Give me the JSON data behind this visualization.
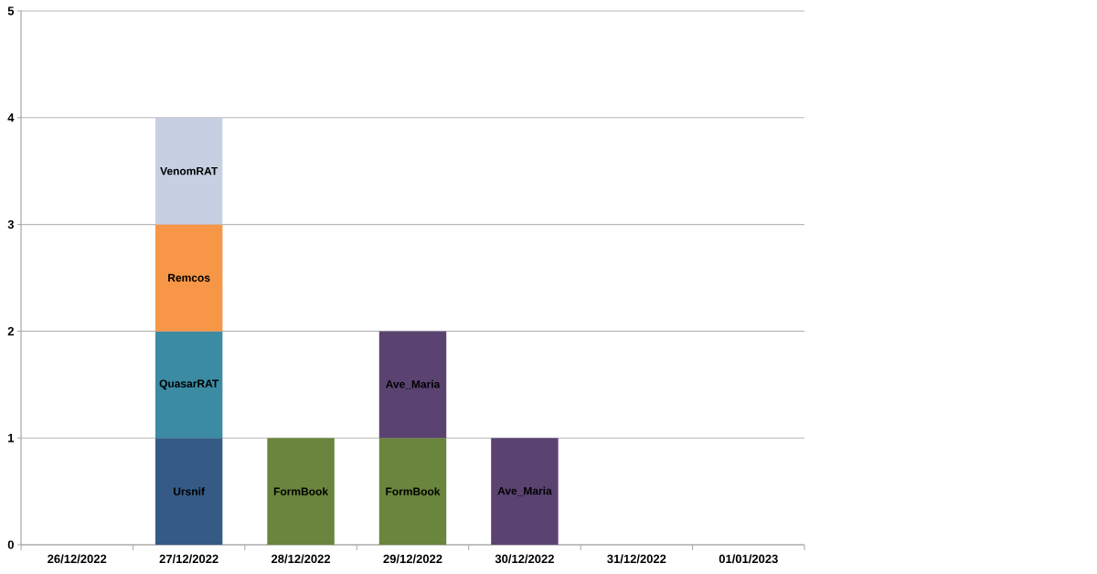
{
  "chart_data": {
    "type": "bar",
    "stacked": true,
    "categories": [
      "26/12/2022",
      "27/12/2022",
      "28/12/2022",
      "29/12/2022",
      "30/12/2022",
      "31/12/2022",
      "01/01/2023"
    ],
    "series": [
      {
        "name": "Ursnif",
        "color": "#355a86",
        "values": [
          null,
          1,
          null,
          null,
          null,
          null,
          null
        ]
      },
      {
        "name": "QuasarRAT",
        "color": "#3b8ba3",
        "values": [
          null,
          1,
          null,
          null,
          null,
          null,
          null
        ]
      },
      {
        "name": "Remcos",
        "color": "#f79646",
        "values": [
          null,
          1,
          null,
          null,
          null,
          null,
          null
        ]
      },
      {
        "name": "VenomRAT",
        "color": "#c6d0e2",
        "values": [
          null,
          1,
          null,
          null,
          null,
          null,
          null
        ]
      },
      {
        "name": "FormBook",
        "color": "#6a853d",
        "values": [
          null,
          null,
          1,
          1,
          null,
          null,
          null
        ]
      },
      {
        "name": "Ave_Maria",
        "color": "#5b4371",
        "values": [
          null,
          null,
          null,
          1,
          1,
          null,
          null
        ]
      }
    ],
    "ylim": [
      0,
      5
    ],
    "yticks": [
      0,
      1,
      2,
      3,
      4,
      5
    ],
    "grid": "y"
  }
}
